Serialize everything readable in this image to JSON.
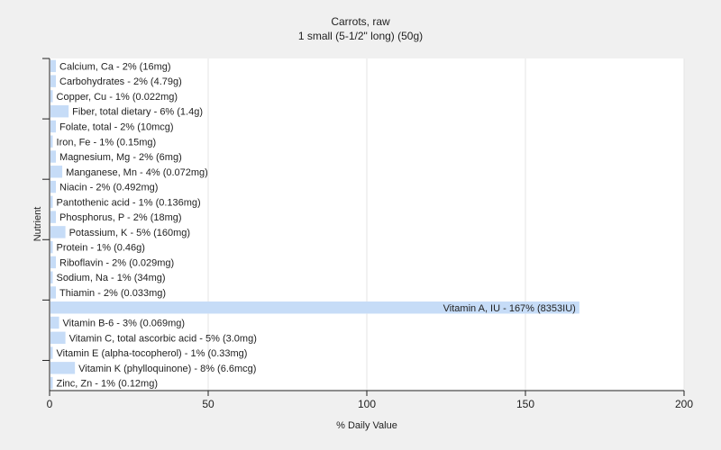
{
  "chart_data": {
    "type": "bar",
    "orientation": "horizontal",
    "title": "Carrots, raw",
    "subtitle": "1 small (5-1/2\" long) (50g)",
    "xlabel": "% Daily Value",
    "ylabel": "Nutrient",
    "xlim": [
      0,
      200
    ],
    "xticks": [
      0,
      50,
      100,
      150,
      200
    ],
    "grid": true,
    "bar_color": "#c6dcf7",
    "categories": [
      "Calcium, Ca",
      "Carbohydrates",
      "Copper, Cu",
      "Fiber, total dietary",
      "Folate, total",
      "Iron, Fe",
      "Magnesium, Mg",
      "Manganese, Mn",
      "Niacin",
      "Pantothenic acid",
      "Phosphorus, P",
      "Potassium, K",
      "Protein",
      "Riboflavin",
      "Sodium, Na",
      "Thiamin",
      "Vitamin A, IU",
      "Vitamin B-6",
      "Vitamin C, total ascorbic acid",
      "Vitamin E (alpha-tocopherol)",
      "Vitamin K (phylloquinone)",
      "Zinc, Zn"
    ],
    "values": [
      2,
      2,
      1,
      6,
      2,
      1,
      2,
      4,
      2,
      1,
      2,
      5,
      1,
      2,
      1,
      2,
      167,
      3,
      5,
      1,
      8,
      1
    ],
    "labels": [
      "Calcium, Ca - 2% (16mg)",
      "Carbohydrates - 2% (4.79g)",
      "Copper, Cu - 1% (0.022mg)",
      "Fiber, total dietary - 6% (1.4g)",
      "Folate, total - 2% (10mcg)",
      "Iron, Fe - 1% (0.15mg)",
      "Magnesium, Mg - 2% (6mg)",
      "Manganese, Mn - 4% (0.072mg)",
      "Niacin - 2% (0.492mg)",
      "Pantothenic acid - 1% (0.136mg)",
      "Phosphorus, P - 2% (18mg)",
      "Potassium, K - 5% (160mg)",
      "Protein - 1% (0.46g)",
      "Riboflavin - 2% (0.029mg)",
      "Sodium, Na - 1% (34mg)",
      "Thiamin - 2% (0.033mg)",
      "Vitamin A, IU - 167% (8353IU)",
      "Vitamin B-6 - 3% (0.069mg)",
      "Vitamin C, total ascorbic acid - 5% (3.0mg)",
      "Vitamin E (alpha-tocopherol) - 1% (0.33mg)",
      "Vitamin K (phylloquinone) - 8% (6.6mcg)",
      "Zinc, Zn - 1% (0.12mg)"
    ]
  }
}
